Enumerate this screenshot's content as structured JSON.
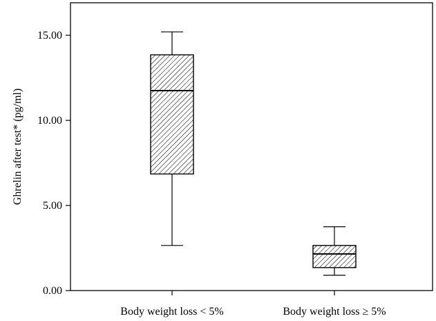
{
  "chart_data": {
    "type": "box",
    "ylabel": "Ghrelin after test* (pg/ml)",
    "ylim": [
      0,
      16.2
    ],
    "yticks": [
      0,
      5,
      10,
      15
    ],
    "ytick_labels": [
      "0.00",
      "5.00",
      "10.00",
      "15.00"
    ],
    "categories": [
      "Body weight loss < 5%",
      "Body weight loss ≥ 5%"
    ],
    "boxes": [
      {
        "category": "Body weight loss < 5%",
        "min": 2.65,
        "q1": 6.85,
        "median": 11.75,
        "q3": 13.85,
        "max": 15.2
      },
      {
        "category": "Body weight loss ≥ 5%",
        "min": 0.9,
        "q1": 1.35,
        "median": 2.15,
        "q3": 2.65,
        "max": 3.75
      }
    ],
    "fill_pattern": "diagonal-hatch",
    "grid": false,
    "legend": false
  }
}
